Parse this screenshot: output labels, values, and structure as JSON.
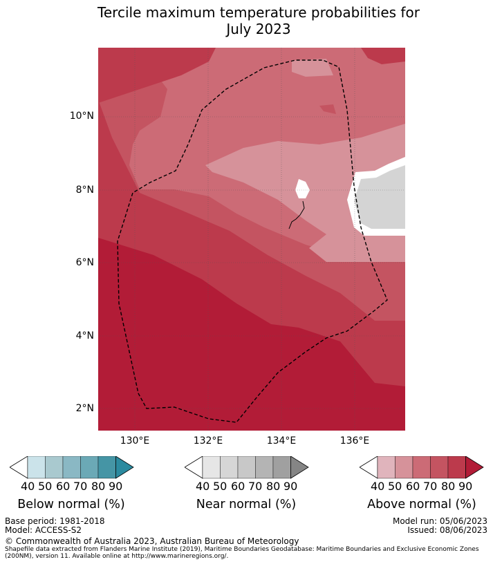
{
  "title": {
    "line1": "Tercile maximum temperature probabilities for",
    "line2": "July 2023"
  },
  "map": {
    "lat_labels": [
      "10°N",
      "8°N",
      "6°N",
      "4°N",
      "2°N"
    ],
    "lon_labels": [
      "130°E",
      "132°E",
      "134°E",
      "136°E"
    ],
    "colors": {
      "above_40": "#e0b4bc",
      "above_50": "#d6929a",
      "above_60": "#cc6b76",
      "above_70": "#c45461",
      "above_80": "#bc3a4c",
      "above_90": "#b21c37",
      "no_data": "#d4d4d4"
    }
  },
  "colorbars": [
    {
      "title": "Below normal (%)",
      "ticks": [
        "40",
        "50",
        "60",
        "70",
        "80",
        "90"
      ],
      "colors": [
        "#ffffff",
        "#cbe3ea",
        "#a9c9cf",
        "#8ab8c4",
        "#6ba9b6",
        "#4595a5",
        "#2b8a9f"
      ]
    },
    {
      "title": "Near normal (%)",
      "ticks": [
        "40",
        "50",
        "60",
        "70",
        "80",
        "90"
      ],
      "colors": [
        "#ffffff",
        "#e6e6e6",
        "#d6d6d6",
        "#c8c8c8",
        "#b4b4b4",
        "#a0a0a0",
        "#858585"
      ]
    },
    {
      "title": "Above normal (%)",
      "ticks": [
        "40",
        "50",
        "60",
        "70",
        "80",
        "90"
      ],
      "colors": [
        "#ffffff",
        "#e0b4bc",
        "#d6929a",
        "#cc6b76",
        "#c45461",
        "#bc3a4c",
        "#b21c37"
      ]
    }
  ],
  "footer": {
    "base_period": "Base period: 1981-2018",
    "model": "Model: ACCESS-S2",
    "model_run": "Model run: 05/06/2023",
    "issued": "Issued: 08/06/2023",
    "copyright": "© Commonwealth of Australia 2023, Australian Bureau of Meteorology",
    "shapefile_line1": "Shapefile data extracted from Flanders Marine Institute (2019), Maritime Boundaries Geodatabase: Maritime Boundaries and Exclusive Economic Zones",
    "shapefile_line2": "(200NM), version 11. Available online at http://www.marineregions.org/."
  }
}
